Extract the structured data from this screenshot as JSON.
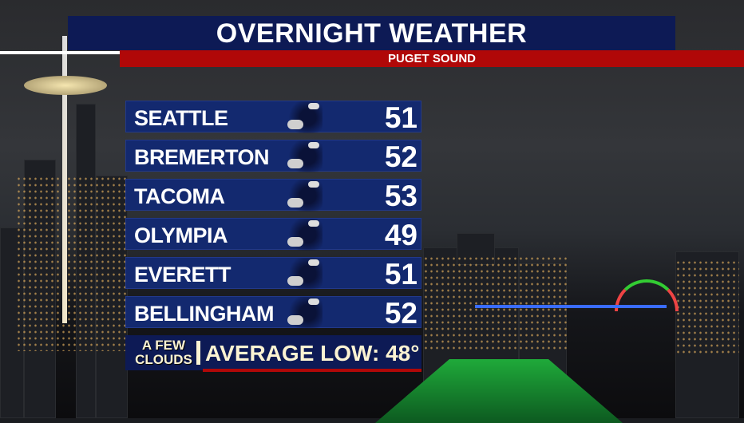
{
  "header": {
    "title": "OVERNIGHT WEATHER",
    "region": "PUGET SOUND"
  },
  "rows": [
    {
      "city": "SEATTLE",
      "temp": "51",
      "icon": "partly-cloudy-night-icon"
    },
    {
      "city": "BREMERTON",
      "temp": "52",
      "icon": "partly-cloudy-night-icon"
    },
    {
      "city": "TACOMA",
      "temp": "53",
      "icon": "partly-cloudy-night-icon"
    },
    {
      "city": "OLYMPIA",
      "temp": "49",
      "icon": "partly-cloudy-night-icon"
    },
    {
      "city": "EVERETT",
      "temp": "51",
      "icon": "partly-cloudy-night-icon"
    },
    {
      "city": "BELLINGHAM",
      "temp": "52",
      "icon": "partly-cloudy-night-icon"
    }
  ],
  "footer": {
    "condition_line1": "A FEW",
    "condition_line2": "CLOUDS",
    "average_low": "AVERAGE LOW:  48°"
  },
  "colors": {
    "navy": "#13296f",
    "red": "#b00808",
    "cream": "#fbf3d2"
  }
}
